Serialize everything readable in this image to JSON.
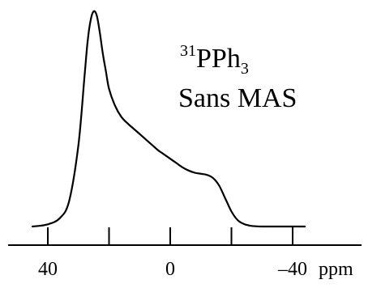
{
  "chart_data": {
    "type": "line",
    "title": "",
    "xlabel": "ppm",
    "ylabel": "",
    "xlim": [
      50,
      -50
    ],
    "ylim": [
      0,
      1
    ],
    "x_reversed": true,
    "grid": false,
    "annotation": {
      "isotope_mass": "31",
      "element": "PPh",
      "subscript": "3",
      "line2": "Sans MAS"
    },
    "ticks": {
      "major": [
        40,
        20,
        0,
        -20,
        -40
      ],
      "labels": [
        {
          "value": 40,
          "text": "40"
        },
        {
          "value": 0,
          "text": "0"
        },
        {
          "value": -40,
          "text": "–40"
        }
      ]
    },
    "series": [
      {
        "x": [
          45,
          40,
          36,
          33,
          30,
          28,
          27,
          26,
          25,
          24,
          23,
          22,
          21,
          20,
          18,
          16,
          14,
          12,
          10,
          8,
          6,
          4,
          2,
          0,
          -2,
          -4,
          -6,
          -8,
          -10,
          -12,
          -14,
          -16,
          -18,
          -20,
          -22,
          -24,
          -26,
          -28,
          -30,
          -32,
          -34,
          -36,
          -40,
          -44
        ],
        "y": [
          0.0,
          0.01,
          0.04,
          0.12,
          0.38,
          0.7,
          0.86,
          0.96,
          1.0,
          0.98,
          0.9,
          0.8,
          0.72,
          0.64,
          0.56,
          0.51,
          0.48,
          0.455,
          0.43,
          0.405,
          0.38,
          0.355,
          0.335,
          0.315,
          0.295,
          0.275,
          0.26,
          0.25,
          0.245,
          0.24,
          0.225,
          0.19,
          0.13,
          0.07,
          0.03,
          0.012,
          0.004,
          0.001,
          0.0,
          0.0,
          0.0,
          0.0,
          0.0,
          0.0
        ]
      }
    ]
  }
}
